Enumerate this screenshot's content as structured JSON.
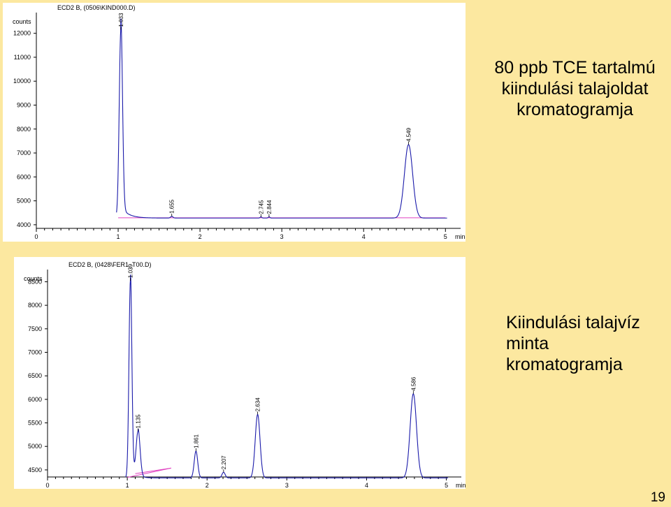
{
  "chart_data": [
    {
      "type": "line",
      "title": "ECD2 B, (0506\\KIND000.D)",
      "ylabel": "counts",
      "xlabel": "min",
      "xlim": [
        0,
        5.1
      ],
      "ylim": [
        3850,
        12750
      ],
      "x_ticks": [
        "0",
        "1",
        "2",
        "3",
        "4",
        "5"
      ],
      "y_ticks": [
        "4000",
        "5000",
        "6000",
        "7000",
        "8000",
        "9000",
        "10000",
        "11000",
        "12000"
      ],
      "baseline": 4280,
      "peaks": [
        {
          "rt": 1.033,
          "label": "1.033",
          "height": 12150,
          "width": 0.02,
          "tail": 0.09
        },
        {
          "rt": 1.655,
          "label": "1.655",
          "height": 4350,
          "width": 0.015,
          "tail": 0.03
        },
        {
          "rt": 2.745,
          "label": "2.745",
          "height": 4330,
          "width": 0.01,
          "tail": 0.02
        },
        {
          "rt": 2.844,
          "label": "2.844",
          "height": 4330,
          "width": 0.01,
          "tail": 0.02
        },
        {
          "rt": 4.549,
          "label": "4.549",
          "height": 7350,
          "width": 0.05,
          "tail": 0.0
        }
      ],
      "integration_lines": [
        [
          1.0,
          4290,
          5.0,
          4290
        ]
      ]
    },
    {
      "type": "line",
      "title": "ECD2 B, (0428\\FER1_T00.D)",
      "ylabel": "counts",
      "xlabel": "min",
      "xlim": [
        0,
        5.1
      ],
      "ylim": [
        4350,
        8700
      ],
      "x_ticks": [
        "0",
        "1",
        "2",
        "3",
        "4",
        "5"
      ],
      "y_ticks": [
        "4500",
        "5000",
        "5500",
        "6000",
        "6500",
        "7000",
        "7500",
        "8000",
        "8500"
      ],
      "baseline": 4330,
      "peaks": [
        {
          "rt": 1.039,
          "label": "1.039",
          "height": 8520,
          "width": 0.018,
          "tail": 0.04
        },
        {
          "rt": 1.135,
          "label": "1.135",
          "height": 5300,
          "width": 0.025,
          "tail": 0.05
        },
        {
          "rt": 1.861,
          "label": "1.861",
          "height": 4900,
          "width": 0.022,
          "tail": 0.0
        },
        {
          "rt": 2.207,
          "label": "2.207",
          "height": 4450,
          "width": 0.02,
          "tail": 0.0
        },
        {
          "rt": 2.634,
          "label": "2.634",
          "height": 5680,
          "width": 0.03,
          "tail": 0.0
        },
        {
          "rt": 4.586,
          "label": "4.586",
          "height": 6120,
          "width": 0.04,
          "tail": 0.0
        }
      ],
      "integration_lines": [
        [
          1.0,
          4340,
          1.55,
          4540
        ],
        [
          1.1,
          4420,
          1.55,
          4540
        ]
      ]
    }
  ],
  "captions": {
    "top": [
      "80 ppb TCE tartalmú",
      "kiindulási talajoldat",
      "kromatogramja"
    ],
    "bottom": [
      "Kiindulási talajvíz",
      "minta",
      "kromatogramja"
    ]
  },
  "page_number": "19",
  "colors": {
    "trace": "#1A1AAA",
    "integration": "#E040C0",
    "axis": "#000000",
    "background": "#FCE8A0"
  }
}
